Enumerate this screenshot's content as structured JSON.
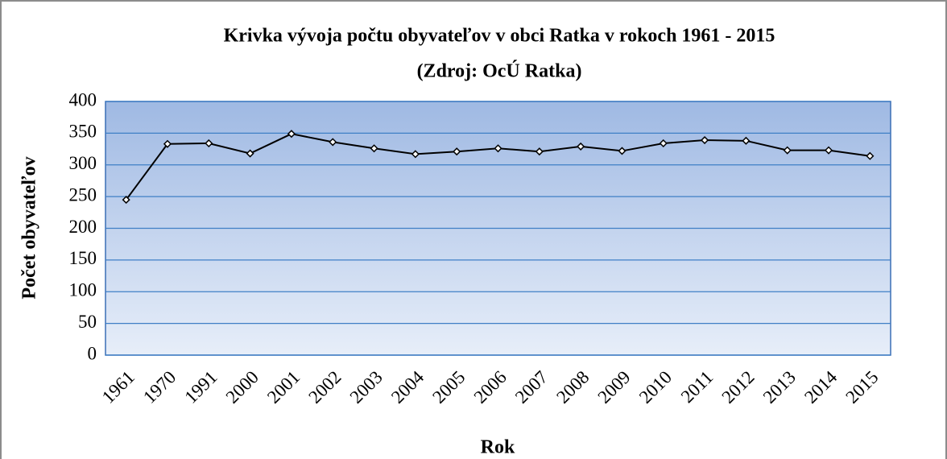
{
  "chart_data": {
    "type": "line",
    "title": "Krivka vývoja počtu obyvateľov v obci Ratka v rokoch 1961 - 2015",
    "subtitle": "(Zdroj: OcÚ Ratka)",
    "x_label": "Rok",
    "y_label": "Počet obyvateľov",
    "categories": [
      "1961",
      "1970",
      "1991",
      "2000",
      "2001",
      "2002",
      "2003",
      "2004",
      "2005",
      "2006",
      "2007",
      "2008",
      "2009",
      "2010",
      "2011",
      "2012",
      "2013",
      "2014",
      "2015"
    ],
    "series": [
      {
        "name": "Počet obyvateľov",
        "color": "#000000",
        "values": [
          245,
          333,
          334,
          318,
          349,
          336,
          326,
          317,
          321,
          326,
          321,
          329,
          322,
          334,
          339,
          338,
          323,
          323,
          314
        ]
      }
    ],
    "ylim": [
      0,
      400
    ],
    "yticks": [
      0,
      50,
      100,
      150,
      200,
      250,
      300,
      350,
      400
    ],
    "grid": true
  }
}
